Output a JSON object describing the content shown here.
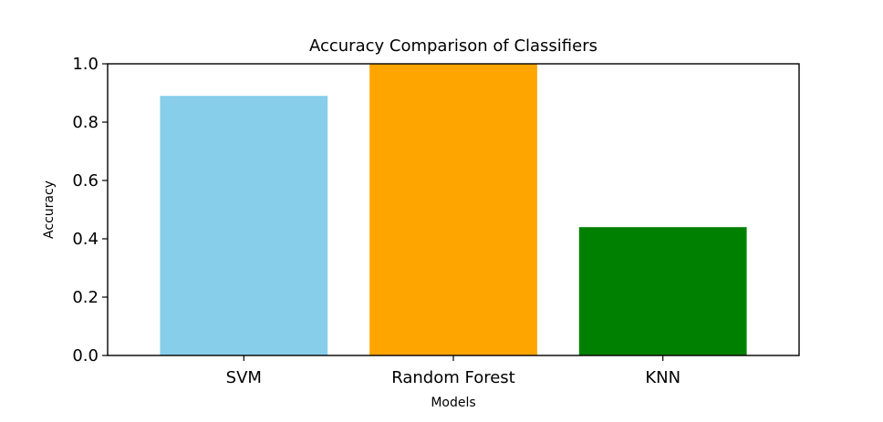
{
  "chart_data": {
    "type": "bar",
    "title": "Accuracy Comparison of Classifiers",
    "xlabel": "Models",
    "ylabel": "Accuracy",
    "categories": [
      "SVM",
      "Random Forest",
      "KNN"
    ],
    "values": [
      0.89,
      1.0,
      0.44
    ],
    "colors": [
      "#87ceeb",
      "#ffa500",
      "#008000"
    ],
    "ylim": [
      0,
      1.0
    ],
    "yticks": [
      0.0,
      0.2,
      0.4,
      0.6,
      0.8,
      1.0
    ],
    "ytick_labels": [
      "0.0",
      "0.2",
      "0.4",
      "0.6",
      "0.8",
      "1.0"
    ],
    "grid": false,
    "legend": "none"
  }
}
